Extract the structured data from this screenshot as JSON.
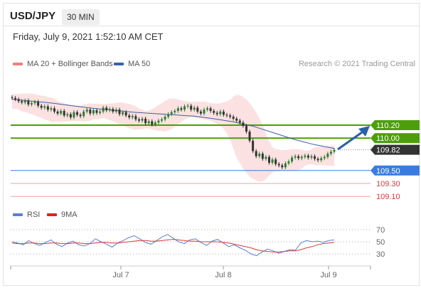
{
  "header": {
    "symbol": "USD/JPY",
    "timeframe": "30 MIN",
    "datetime": "Friday, July 9, 2021 1:52:10 AM CET"
  },
  "legend": {
    "ma_bb": "MA 20 + Bollinger Bands",
    "ma50": "MA 50",
    "credit": "Research © 2021 Trading Central"
  },
  "rsi_legend": {
    "rsi": "RSI",
    "ma9": "9MA"
  },
  "colors": {
    "up": "#2e7d32",
    "down": "#333333",
    "bb_fill": "#fadada",
    "ma50": "#3b5ea8",
    "resistance": "#4c9e0b",
    "support_blue": "#3a7be0",
    "support_red": "#d93a3a",
    "rsi": "#5b7fd6",
    "ma9": "#d93a3a"
  },
  "chart_data": {
    "type": "line",
    "title": "USD/JPY 30 MIN",
    "price_range": [
      108.95,
      110.55
    ],
    "x_ticks": [
      "Jul 7",
      "Jul 8",
      "Jul 9"
    ],
    "series": [
      {
        "name": "USD/JPY",
        "values": [
          110.62,
          110.6,
          110.57,
          110.55,
          110.58,
          110.52,
          110.54,
          110.56,
          110.5,
          110.47,
          110.49,
          110.44,
          110.46,
          110.41,
          110.38,
          110.42,
          110.35,
          110.37,
          110.32,
          110.4,
          110.36,
          110.34,
          110.41,
          110.44,
          110.38,
          110.43,
          110.39,
          110.41,
          110.47,
          110.43,
          110.45,
          110.41,
          110.44,
          110.37,
          110.4,
          110.35,
          110.32,
          110.34,
          110.29,
          110.27,
          110.3,
          110.23,
          110.26,
          110.21,
          110.24,
          110.27,
          110.29,
          110.33,
          110.37,
          110.4,
          110.42,
          110.46,
          110.44,
          110.49,
          110.5,
          110.44,
          110.47,
          110.41,
          110.38,
          110.44,
          110.46,
          110.42,
          110.39,
          110.37,
          110.41,
          110.36,
          110.35,
          110.33,
          110.3,
          110.27,
          110.24,
          110.19,
          110.1,
          109.96,
          109.8,
          109.72,
          109.76,
          109.68,
          109.71,
          109.62,
          109.67,
          109.6,
          109.58,
          109.55,
          109.61,
          109.64,
          109.7,
          109.72,
          109.69,
          109.71,
          109.73,
          109.7,
          109.72,
          109.68,
          109.66,
          109.69,
          109.71,
          109.76,
          109.79,
          109.82
        ]
      },
      {
        "name": "MA 50",
        "values": [
          110.6,
          110.57,
          110.54,
          110.5,
          110.46,
          110.43,
          110.4,
          110.38,
          110.36,
          110.34,
          110.3,
          110.25,
          110.18,
          110.08,
          109.98,
          109.9,
          109.84
        ]
      }
    ],
    "levels": [
      {
        "value": 110.2,
        "label": "110.20",
        "type": "resistance"
      },
      {
        "value": 110.0,
        "label": "110.00",
        "type": "resistance"
      },
      {
        "value": 109.82,
        "label": "109.82",
        "type": "last"
      },
      {
        "value": 109.5,
        "label": "109.50",
        "type": "pivot"
      },
      {
        "value": 109.3,
        "label": "109.30",
        "type": "support"
      },
      {
        "value": 109.1,
        "label": "109.10",
        "type": "support"
      }
    ],
    "rsi": {
      "ticks": [
        70,
        50,
        30
      ],
      "rsi_values": [
        50,
        48,
        45,
        52,
        47,
        44,
        49,
        53,
        46,
        42,
        48,
        51,
        45,
        43,
        47,
        55,
        50,
        46,
        41,
        48,
        52,
        57,
        60,
        55,
        49,
        46,
        52,
        58,
        62,
        56,
        50,
        47,
        53,
        55,
        49,
        44,
        51,
        54,
        48,
        42,
        45,
        40,
        36,
        30,
        27,
        33,
        38,
        35,
        31,
        34,
        37,
        36,
        48,
        52,
        50,
        51,
        49,
        52,
        53
      ],
      "ma9_values": [
        48,
        47,
        47,
        48,
        48,
        47,
        47,
        48,
        48,
        47,
        47,
        48,
        48,
        47,
        47,
        48,
        49,
        49,
        48,
        48,
        49,
        50,
        51,
        52,
        52,
        51,
        51,
        52,
        53,
        54,
        53,
        52,
        51,
        51,
        50,
        50,
        50,
        50,
        49,
        48,
        46,
        44,
        42,
        40,
        37,
        35,
        34,
        33,
        33,
        34,
        35,
        35,
        37,
        40,
        42,
        45,
        47,
        48,
        49
      ]
    }
  }
}
